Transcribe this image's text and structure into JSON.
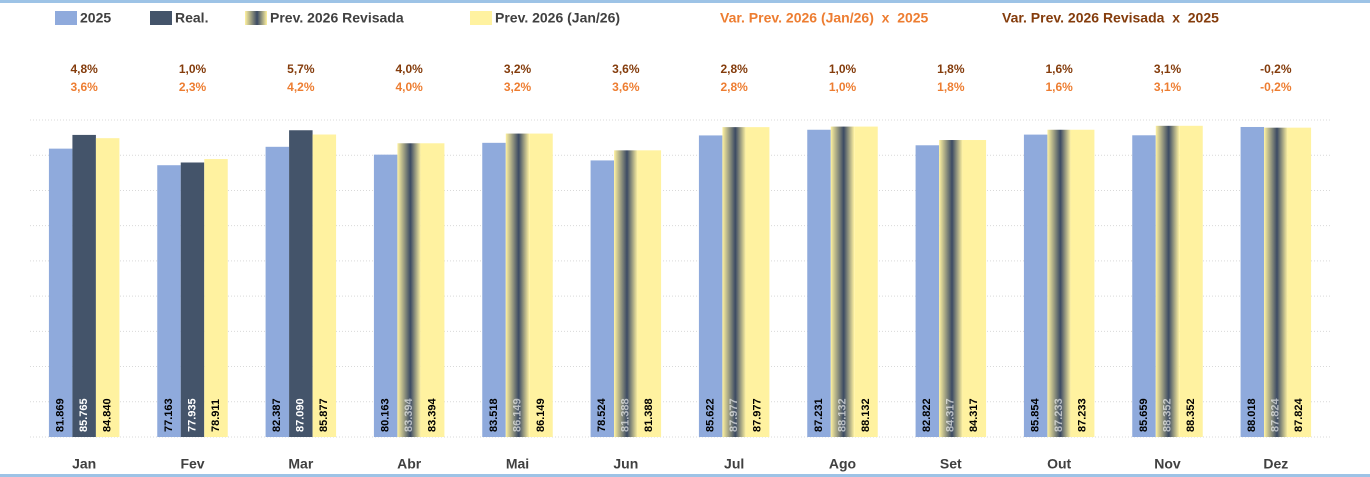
{
  "chart_data": {
    "type": "bar",
    "categories": [
      "Jan",
      "Fev",
      "Mar",
      "Abr",
      "Mai",
      "Jun",
      "Jul",
      "Ago",
      "Set",
      "Out",
      "Nov",
      "Dez"
    ],
    "series": [
      {
        "name": "2025",
        "color": "#8faadc",
        "values": [
          81869,
          77163,
          82387,
          80163,
          83518,
          78524,
          85622,
          87231,
          82822,
          85854,
          85659,
          88018
        ],
        "value_labels": [
          "81.869",
          "77.163",
          "82.387",
          "80.163",
          "83.518",
          "78.524",
          "85.622",
          "87.231",
          "82.822",
          "85.854",
          "85.659",
          "88.018"
        ]
      },
      {
        "name": "Real.",
        "color": "#44546a",
        "values": [
          85765,
          77935,
          87090,
          null,
          null,
          null,
          null,
          null,
          null,
          null,
          null,
          null
        ],
        "value_labels": [
          "85.765",
          "77.935",
          "87.090",
          null,
          null,
          null,
          null,
          null,
          null,
          null,
          null,
          null
        ]
      },
      {
        "name": "Prev. 2026 Revisada",
        "color": "#3b4a63",
        "values": [
          null,
          null,
          null,
          83394,
          86149,
          81388,
          87977,
          88132,
          84317,
          87233,
          88352,
          87824
        ],
        "value_labels": [
          null,
          null,
          null,
          "83.394",
          "86.149",
          "81.388",
          "87.977",
          "88.132",
          "84.317",
          "87.233",
          "88.352",
          "87.824"
        ]
      },
      {
        "name": "Prev. 2026 (Jan/26)",
        "color": "#fff2a0",
        "values": [
          84840,
          78911,
          85877,
          83394,
          86149,
          81388,
          87977,
          88132,
          84317,
          87233,
          88352,
          87824
        ],
        "value_labels": [
          "84.840",
          "78.911",
          "85.877",
          "83.394",
          "86.149",
          "81.388",
          "87.977",
          "88.132",
          "84.317",
          "87.233",
          "88.352",
          "87.824"
        ]
      }
    ],
    "variations": [
      {
        "name": "Var. Prev. 2026 (Jan/26)  x  2025",
        "color": "#ed7d31",
        "values": [
          3.6,
          2.3,
          4.2,
          4.0,
          3.2,
          3.6,
          2.8,
          1.0,
          1.8,
          1.6,
          3.1,
          -0.2
        ],
        "value_labels": [
          "3,6%",
          "2,3%",
          "4,2%",
          "4,0%",
          "3,2%",
          "3,6%",
          "2,8%",
          "1,0%",
          "1,8%",
          "1,6%",
          "3,1%",
          "-0,2%"
        ]
      },
      {
        "name": "Var. Prev. 2026 Revisada  x  2025",
        "color": "#843c0c",
        "values": [
          4.8,
          1.0,
          5.7,
          4.0,
          3.2,
          3.6,
          2.8,
          1.0,
          1.8,
          1.6,
          3.1,
          -0.2
        ],
        "value_labels": [
          "4,8%",
          "1,0%",
          "5,7%",
          "4,0%",
          "3,2%",
          "3,6%",
          "2,8%",
          "1,0%",
          "1,8%",
          "1,6%",
          "3,1%",
          "-0,2%"
        ]
      }
    ],
    "ylim": [
      0,
      90000
    ],
    "yticks": [
      0,
      10000,
      20000,
      30000,
      40000,
      50000,
      60000,
      70000,
      80000,
      90000
    ],
    "grid": true
  }
}
